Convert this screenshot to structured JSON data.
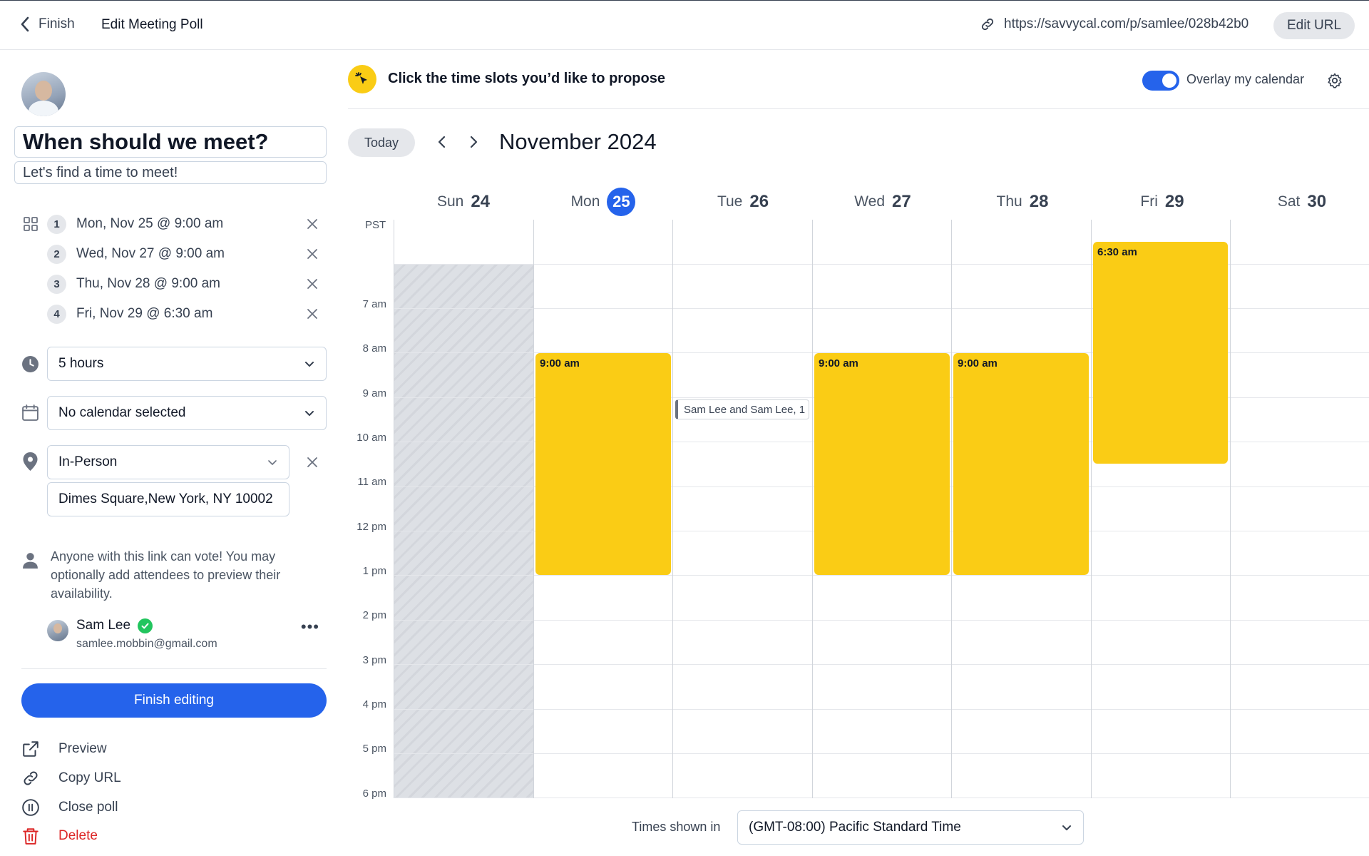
{
  "topbar": {
    "back_label": "Finish",
    "page_title": "Edit Meeting Poll",
    "url": "https://savvycal.com/p/samlee/028b42b0",
    "edit_url_label": "Edit URL"
  },
  "poll": {
    "title": "When should we meet?",
    "description": "Let's find a time to meet!",
    "slots": [
      {
        "num": "1",
        "label": "Mon, Nov 25 @ 9:00 am"
      },
      {
        "num": "2",
        "label": "Wed, Nov 27 @ 9:00 am"
      },
      {
        "num": "3",
        "label": "Thu, Nov 28 @ 9:00 am"
      },
      {
        "num": "4",
        "label": "Fri, Nov 29 @ 6:30 am"
      }
    ],
    "duration": "5 hours",
    "calendar": "No calendar selected",
    "location_type": "In-Person",
    "address": "Dimes Square,New York, NY 10002",
    "vote_info": "Anyone with this link can vote! You may optionally add attendees to preview their availability.",
    "attendee": {
      "name": "Sam Lee",
      "email": "samlee.mobbin@gmail.com",
      "more": "•••"
    }
  },
  "actions": {
    "finish_label": "Finish editing",
    "preview": "Preview",
    "copy_url": "Copy URL",
    "close_poll": "Close poll",
    "delete": "Delete"
  },
  "calendar": {
    "hint": "Click the time slots you’d like to propose",
    "overlay_label": "Overlay my calendar",
    "overlay_enabled": true,
    "today_label": "Today",
    "month": "November 2024",
    "timezone_short": "PST",
    "days": [
      {
        "name": "Sun",
        "num": "24",
        "today": false
      },
      {
        "name": "Mon",
        "num": "25",
        "today": true
      },
      {
        "name": "Tue",
        "num": "26",
        "today": false
      },
      {
        "name": "Wed",
        "num": "27",
        "today": false
      },
      {
        "name": "Thu",
        "num": "28",
        "today": false
      },
      {
        "name": "Fri",
        "num": "29",
        "today": false
      },
      {
        "name": "Sat",
        "num": "30",
        "today": false
      }
    ],
    "hours": [
      "7 am",
      "8 am",
      "9 am",
      "10 am",
      "11 am",
      "12 pm",
      "1 pm",
      "2 pm",
      "3 pm",
      "4 pm",
      "5 pm",
      "6 pm"
    ],
    "events": [
      {
        "day": "Mon",
        "label": "9:00 am"
      },
      {
        "day": "Wed",
        "label": "9:00 am"
      },
      {
        "day": "Thu",
        "label": "9:00 am"
      },
      {
        "day": "Fri",
        "label": "6:30 am"
      }
    ],
    "busy_event": {
      "day": "Tue",
      "label": "Sam Lee and Sam Lee, 1"
    },
    "footer_label": "Times shown in",
    "timezone": "(GMT-08:00) Pacific Standard Time"
  },
  "colors": {
    "accent": "#2563eb",
    "slot": "#facc15",
    "danger": "#dc2626",
    "verified": "#22c55e"
  }
}
